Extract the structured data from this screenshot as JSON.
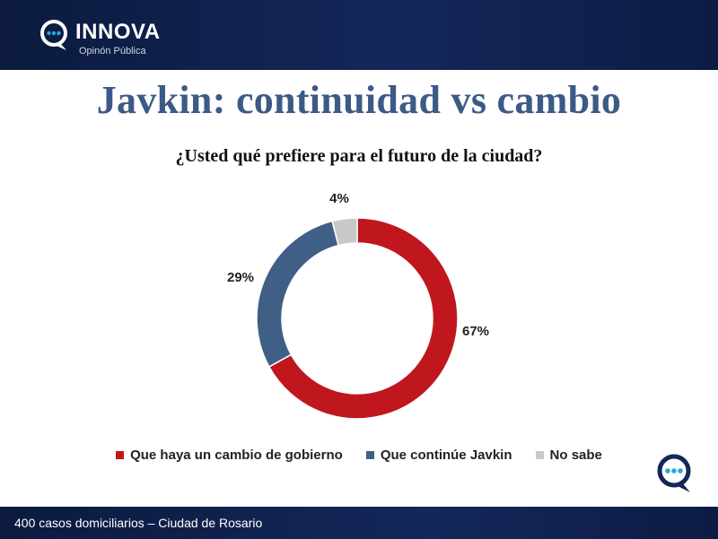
{
  "header": {
    "brand_name": "INNOVA",
    "brand_sub": "Opinón Pública"
  },
  "title": "Javkin: continuidad vs cambio",
  "question": "¿Usted qué prefiere para el futuro de la ciudad?",
  "colors": {
    "brand_dark": "#13275a",
    "title_blue": "#3c5a86",
    "red": "#c0161d",
    "blue": "#3f5f86",
    "gray": "#c8c8c8"
  },
  "chart_data": {
    "type": "pie",
    "donut": true,
    "title": "¿Usted qué prefiere para el futuro de la ciudad?",
    "series": [
      {
        "name": "Que haya un cambio de gobierno",
        "value": 67,
        "label": "67%",
        "color": "#c0161d"
      },
      {
        "name": "Que continúe Javkin",
        "value": 29,
        "label": "29%",
        "color": "#3f5f86"
      },
      {
        "name": "No sabe",
        "value": 4,
        "label": "4%",
        "color": "#c8c8c8"
      }
    ],
    "legend_position": "bottom"
  },
  "footer": {
    "text": "400 casos domiciliarios – Ciudad de Rosario"
  }
}
